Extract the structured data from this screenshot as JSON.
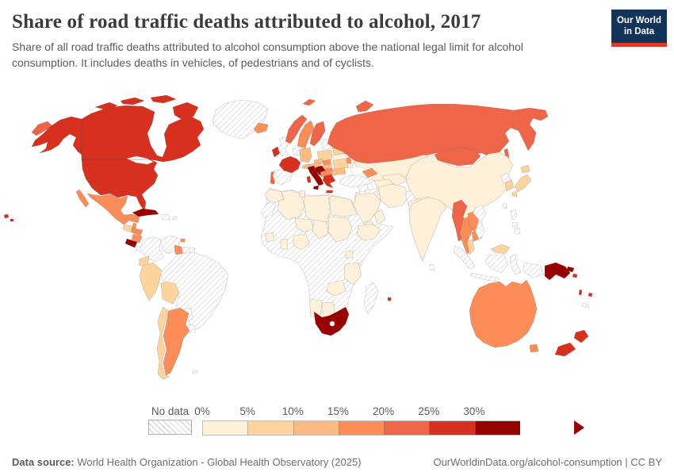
{
  "header": {
    "title": "Share of road traffic deaths attributed to alcohol, 2017",
    "subtitle": "Share of all road traffic deaths attributed to alcohol consumption above the national legal limit for alcohol consumption. It includes deaths in vehicles, of pedestrians and of cyclists.",
    "logo": {
      "line1": "Our World",
      "line2": "in Data",
      "bg_color": "#12345a",
      "accent_color": "#e2362b"
    }
  },
  "legend": {
    "no_data_label": "No data",
    "tick_labels": [
      "0%",
      "5%",
      "10%",
      "15%",
      "20%",
      "25%",
      "30%"
    ],
    "bins": [
      {
        "label": "0–5%",
        "color": "#FEF0D9"
      },
      {
        "label": "5–10%",
        "color": "#FDD49E"
      },
      {
        "label": "10–15%",
        "color": "#FDBB84"
      },
      {
        "label": "15–20%",
        "color": "#FC8D59"
      },
      {
        "label": "20–25%",
        "color": "#EF6548"
      },
      {
        "label": "25–30%",
        "color": "#D7301F"
      },
      {
        "label": "30%+",
        "color": "#990000"
      }
    ]
  },
  "footer": {
    "source_label": "Data source:",
    "source_text": " World Health Organization - Global Health Observatory (2025)",
    "link_text": "OurWorldinData.org/alcohol-consumption | CC BY"
  },
  "chart_data": {
    "type": "choropleth",
    "title": "Share of road traffic deaths attributed to alcohol, 2017",
    "unit": "%",
    "legend_bins": [
      "0–5%",
      "5–10%",
      "10–15%",
      "15–20%",
      "20–25%",
      "25–30%",
      "30%+",
      "No data (hatched)"
    ],
    "countries_by_bin": {
      "0–5%": [
        "Ukraine",
        "Kazakhstan",
        "Uzbekistan",
        "Turkmenistan",
        "Iran",
        "Pakistan",
        "Saudi Arabia",
        "Yemen",
        "Oman",
        "Jordan/Israel",
        "India",
        "China",
        "Morocco",
        "Algeria",
        "Tunisia",
        "Libya",
        "Egypt",
        "Niger",
        "Chad",
        "Sudan",
        "Nigeria",
        "Ghana",
        "Guinea",
        "Ethiopia",
        "Uganda",
        "Tanzania",
        "Zambia",
        "Namibia",
        "Botswana"
      ],
      "5–10%": [
        "Guatemala",
        "Ecuador",
        "Peru",
        "Bolivia",
        "Chile",
        "Denmark",
        "Poland",
        "Belarus",
        "Romania",
        "Japan",
        "South Korea",
        "Malaysia"
      ],
      "10–15%": [
        "Germany",
        "Czechia",
        "Austria",
        "Switzerland",
        "Hungary",
        "Bulgaria"
      ],
      "15–20%": [
        "Mexico",
        "Belize",
        "Honduras",
        "Nicaragua",
        "Guyana",
        "Argentina",
        "Iceland",
        "Sweden",
        "Slovakia",
        "Bosnia and Herzegovina",
        "Serbia",
        "Moldova",
        "Georgia/Azerbaijan",
        "Thailand",
        "Laos",
        "Cambodia",
        "Trinidad and Tobago",
        "Australia"
      ],
      "20–25%": [
        "Russia",
        "Norway",
        "Finland",
        "Portugal",
        "Mongolia",
        "Myanmar"
      ],
      "25–30%": [
        "Canada",
        "United States",
        "Ireland",
        "France",
        "Greece",
        "Sardinia (Italy region shown red)",
        "New Zealand",
        "Solomon Islands",
        "Vanuatu",
        "Fiji",
        "Mauritius"
      ],
      "30%+": [
        "Cuba",
        "Costa Rica",
        "Italy",
        "Croatia/Slovenia",
        "Albania",
        "South Africa",
        "Papua New Guinea"
      ],
      "No data (hatched)": [
        "Greenland",
        "United Kingdom",
        "Belgium/Netherlands",
        "Spain",
        "Baltic states",
        "Turkey",
        "Syria",
        "Iraq",
        "Afghanistan",
        "Kyrgyzstan/Tajikistan",
        "Sri Lanka",
        "North Korea",
        "Taiwan",
        "Vietnam",
        "Philippines",
        "Indonesia",
        "New Caledonia",
        "Panama",
        "Hispaniola",
        "Colombia",
        "Venezuela",
        "Suriname",
        "French Guiana",
        "Brazil",
        "Paraguay",
        "Uruguay",
        "Falkland Islands",
        "Western Sahara",
        "Madagascar",
        "Central Africa (unlabelled)"
      ]
    }
  },
  "map": {
    "no_data_style": "hatched",
    "region_bins": {
      "greenland": "nd",
      "united-kingdom": "nd",
      "belgium-netherlands": "nd",
      "spain": "nd",
      "baltic-states": "nd",
      "turkey": "nd",
      "syria": "nd",
      "iraq": "nd",
      "afghanistan": "nd",
      "kyrgyzstan-tajikistan": "nd",
      "sri-lanka": "nd",
      "north-korea": "nd",
      "taiwan": "nd",
      "vietnam": "nd",
      "philippines": "nd",
      "indonesia": "nd",
      "new-caledonia": "nd",
      "panama": "nd",
      "hispaniola": "nd",
      "puerto-rico": "nd",
      "colombia": "nd",
      "venezuela": "nd",
      "suriname": "nd",
      "french-guiana": "nd",
      "brazil": "nd",
      "paraguay": "nd",
      "uruguay": "nd",
      "falkland-islands": "nd",
      "western-sahara": "nd",
      "madagascar": "nd",
      "africa-nodata": "nd",
      "franz-josef": "nd",
      "ukraine": 0,
      "kazakhstan": 0,
      "uzbekistan": 0,
      "turkmenistan": 0,
      "iran": 0,
      "pakistan": 0,
      "saudi-arabia": 0,
      "yemen": 0,
      "oman": 0,
      "jordan-israel": 0,
      "india": 0,
      "china": 0,
      "morocco": 0,
      "algeria": 0,
      "tunisia": 0,
      "libya": 0,
      "egypt": 0,
      "niger": 0,
      "chad": 0,
      "sudan": 0,
      "nigeria": 0,
      "ghana": 0,
      "guinea": 0,
      "ethiopia": 0,
      "uganda": 0,
      "tanzania": 0,
      "zambia": 0,
      "namibia": 0,
      "botswana": 0,
      "guatemala": 1,
      "ecuador": 1,
      "peru": 1,
      "bolivia": 1,
      "chile": 1,
      "denmark": 1,
      "poland": 1,
      "belarus": 1,
      "romania": 1,
      "japan": 1,
      "south-korea": 1,
      "malaysia": 1,
      "germany": 2,
      "czechia": 2,
      "austria": 2,
      "switzerland": 2,
      "hungary": 2,
      "bulgaria": 2,
      "mexico": 3,
      "belize": 3,
      "honduras": 3,
      "nicaragua": 3,
      "guyana": 3,
      "argentina": 3,
      "iceland": 3,
      "sweden": 3,
      "slovakia": 3,
      "bosnia": 3,
      "serbia": 3,
      "moldova": 3,
      "caucasus": 3,
      "thailand": 3,
      "laos": 3,
      "cambodia": 3,
      "trinidad": 3,
      "australia": 3,
      "russia": 4,
      "norway": 4,
      "finland": 4,
      "portugal": 4,
      "mongolia": 4,
      "myanmar": 4,
      "canada": 5,
      "united-states": 5,
      "ireland": 5,
      "france": 5,
      "greece": 5,
      "sardinia": 5,
      "new-zealand": 5,
      "solomon-islands": 5,
      "vanuatu": 5,
      "fiji": 5,
      "mauritius": 5,
      "cuba": 6,
      "costa-rica": 6,
      "italy": 6,
      "croatia": 6,
      "albania": 6,
      "south-africa": 6,
      "papua-new-guinea": 6
    }
  }
}
